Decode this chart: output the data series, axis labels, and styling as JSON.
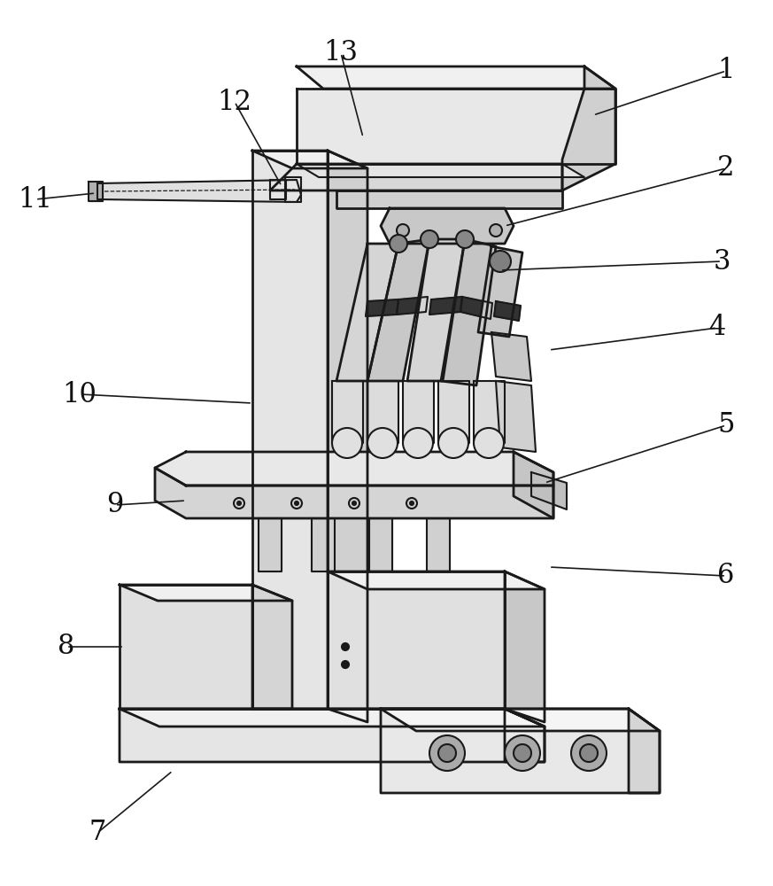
{
  "background_color": "#ffffff",
  "line_color": "#1a1a1a",
  "line_width": 1.5,
  "figsize": [
    8.73,
    10.0
  ],
  "dpi": 100,
  "label_fontsize": 22,
  "arrow_color": "#1a1a1a",
  "labels_info": [
    [
      1,
      820,
      80,
      670,
      130
    ],
    [
      2,
      820,
      190,
      570,
      255
    ],
    [
      3,
      815,
      295,
      565,
      305
    ],
    [
      4,
      810,
      370,
      620,
      395
    ],
    [
      5,
      820,
      480,
      615,
      545
    ],
    [
      6,
      820,
      650,
      620,
      640
    ],
    [
      7,
      110,
      940,
      195,
      870
    ],
    [
      8,
      75,
      730,
      140,
      730
    ],
    [
      9,
      130,
      570,
      210,
      565
    ],
    [
      10,
      90,
      445,
      285,
      455
    ],
    [
      11,
      40,
      225,
      108,
      218
    ],
    [
      12,
      265,
      115,
      318,
      210
    ],
    [
      13,
      385,
      60,
      410,
      155
    ]
  ]
}
